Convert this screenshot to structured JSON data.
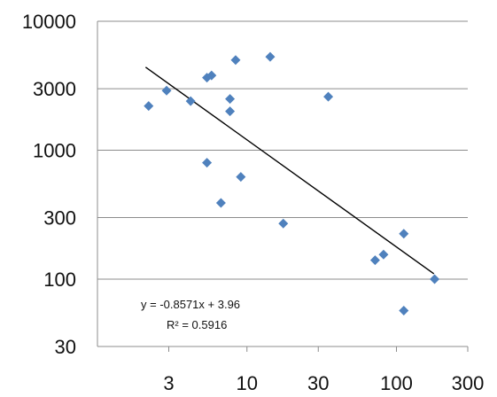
{
  "chart_data": {
    "type": "scatter",
    "x_scale": "log",
    "y_scale": "log",
    "xlim": [
      1,
      300
    ],
    "ylim": [
      30,
      10000
    ],
    "grid": "horizontal",
    "marker_color": "#4f81bd",
    "x_ticks": [
      {
        "value": 3,
        "label": "3"
      },
      {
        "value": 10,
        "label": "10"
      },
      {
        "value": 30,
        "label": "30"
      },
      {
        "value": 100,
        "label": "100"
      },
      {
        "value": 300,
        "label": "300"
      }
    ],
    "y_ticks": [
      {
        "value": 30,
        "label": "30"
      },
      {
        "value": 100,
        "label": "100"
      },
      {
        "value": 300,
        "label": "300"
      },
      {
        "value": 1000,
        "label": "1000"
      },
      {
        "value": 3000,
        "label": "3000"
      },
      {
        "value": 10000,
        "label": "10000"
      }
    ],
    "points": [
      {
        "x": 2.2,
        "y": 2200
      },
      {
        "x": 2.9,
        "y": 2900
      },
      {
        "x": 4.2,
        "y": 2400
      },
      {
        "x": 5.4,
        "y": 3650
      },
      {
        "x": 5.8,
        "y": 3800
      },
      {
        "x": 5.4,
        "y": 800
      },
      {
        "x": 6.7,
        "y": 390
      },
      {
        "x": 7.7,
        "y": 2500
      },
      {
        "x": 7.7,
        "y": 2000
      },
      {
        "x": 8.4,
        "y": 5000
      },
      {
        "x": 9.1,
        "y": 620
      },
      {
        "x": 14.3,
        "y": 5300
      },
      {
        "x": 17.5,
        "y": 270
      },
      {
        "x": 35,
        "y": 2600
      },
      {
        "x": 72,
        "y": 140
      },
      {
        "x": 82,
        "y": 155
      },
      {
        "x": 112,
        "y": 225
      },
      {
        "x": 112,
        "y": 57
      },
      {
        "x": 180,
        "y": 100
      }
    ],
    "trendline": {
      "points": [
        {
          "x": 2.1,
          "y": 4400
        },
        {
          "x": 178,
          "y": 110
        }
      ],
      "equation": "y = -0.8571x + 3.96",
      "r_squared": "R² = 0.5916"
    }
  }
}
